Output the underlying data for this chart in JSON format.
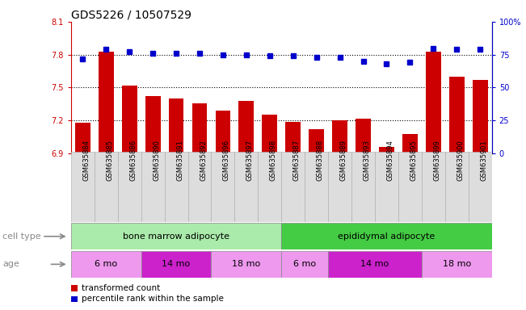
{
  "title": "GDS5226 / 10507529",
  "samples": [
    "GSM635884",
    "GSM635885",
    "GSM635886",
    "GSM635890",
    "GSM635891",
    "GSM635892",
    "GSM635896",
    "GSM635897",
    "GSM635898",
    "GSM635887",
    "GSM635888",
    "GSM635889",
    "GSM635893",
    "GSM635894",
    "GSM635895",
    "GSM635899",
    "GSM635900",
    "GSM635901"
  ],
  "transformed_count": [
    7.18,
    7.83,
    7.52,
    7.42,
    7.4,
    7.36,
    7.29,
    7.38,
    7.25,
    7.19,
    7.12,
    7.2,
    7.22,
    6.96,
    7.08,
    7.83,
    7.6,
    7.57
  ],
  "percentile_rank": [
    72,
    79,
    77,
    76,
    76,
    76,
    75,
    75,
    74,
    74,
    73,
    73,
    70,
    68,
    69,
    80,
    79,
    79
  ],
  "ylim_left": [
    6.9,
    8.1
  ],
  "ylim_right": [
    0,
    100
  ],
  "yticks_left": [
    6.9,
    7.2,
    7.5,
    7.8,
    8.1
  ],
  "yticks_right": [
    0,
    25,
    50,
    75,
    100
  ],
  "ytick_labels_left": [
    "6.9",
    "7.2",
    "7.5",
    "7.8",
    "8.1"
  ],
  "ytick_labels_right": [
    "0",
    "25",
    "50",
    "75",
    "100%"
  ],
  "hlines": [
    7.2,
    7.5,
    7.8
  ],
  "bar_color": "#cc0000",
  "dot_color": "#0000cc",
  "bar_width": 0.65,
  "cell_type_groups": [
    {
      "label": "bone marrow adipocyte",
      "start": 0,
      "end": 9,
      "color": "#aaeaaa"
    },
    {
      "label": "epididymal adipocyte",
      "start": 9,
      "end": 18,
      "color": "#44cc44"
    }
  ],
  "age_groups": [
    {
      "label": "6 mo",
      "start": 0,
      "end": 3,
      "color": "#ee99ee"
    },
    {
      "label": "14 mo",
      "start": 3,
      "end": 6,
      "color": "#cc22cc"
    },
    {
      "label": "18 mo",
      "start": 6,
      "end": 9,
      "color": "#ee99ee"
    },
    {
      "label": "6 mo",
      "start": 9,
      "end": 11,
      "color": "#ee99ee"
    },
    {
      "label": "14 mo",
      "start": 11,
      "end": 15,
      "color": "#cc22cc"
    },
    {
      "label": "18 mo",
      "start": 15,
      "end": 18,
      "color": "#ee99ee"
    }
  ],
  "cell_type_label": "cell type",
  "age_label": "age",
  "legend_bar_label": "transformed count",
  "legend_dot_label": "percentile rank within the sample",
  "background_color": "#ffffff",
  "ax_background": "#ffffff",
  "xtick_bg_color": "#dddddd",
  "tick_label_color_left": "#cc0000",
  "tick_label_color_right": "#0000cc",
  "title_fontsize": 10,
  "tick_fontsize": 7,
  "label_fontsize": 8
}
